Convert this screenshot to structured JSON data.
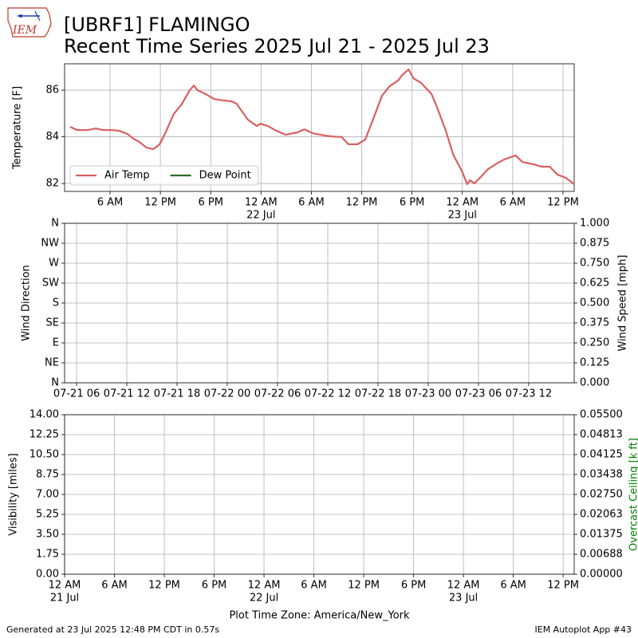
{
  "title": "[UBRF1] FLAMINGO",
  "subtitle": "Recent Time Series 2025 Jul 21 - 2025 Jul 23",
  "logo_text": "IEM",
  "footer_left": "Generated at 23 Jul 2025 12:48 PM CDT in 0.57s",
  "footer_right": "IEM Autoplot App #43",
  "chart_data": [
    {
      "type": "line",
      "ylabel": "Temperature [F]",
      "xlim": [
        "2025-07-21T00:35",
        "2025-07-23T13:20"
      ],
      "ylim": [
        81.66,
        87.13
      ],
      "yticks": [
        82,
        84,
        86
      ],
      "xticks": [
        {
          "value": "2025-07-21T06:00",
          "label": "6 AM"
        },
        {
          "value": "2025-07-21T12:00",
          "label": "12 PM"
        },
        {
          "value": "2025-07-21T18:00",
          "label": "6 PM"
        },
        {
          "value": "2025-07-22T00:00",
          "label": "12 AM",
          "date": "22 Jul"
        },
        {
          "value": "2025-07-22T06:00",
          "label": "6 AM"
        },
        {
          "value": "2025-07-22T12:00",
          "label": "12 PM"
        },
        {
          "value": "2025-07-22T18:00",
          "label": "6 PM"
        },
        {
          "value": "2025-07-23T00:00",
          "label": "12 AM",
          "date": "23 Jul"
        },
        {
          "value": "2025-07-23T06:00",
          "label": "6 AM"
        },
        {
          "value": "2025-07-23T12:00",
          "label": "12 PM"
        }
      ],
      "grid": true,
      "legend": "lower left",
      "series": [
        {
          "name": "Air Temp",
          "color": "#d9605f",
          "x": [
            "2025-07-21T01:15",
            "2025-07-21T02:05",
            "2025-07-21T03:20",
            "2025-07-21T04:20",
            "2025-07-21T05:05",
            "2025-07-21T06:10",
            "2025-07-21T07:05",
            "2025-07-21T08:05",
            "2025-07-21T08:50",
            "2025-07-21T09:30",
            "2025-07-21T10:20",
            "2025-07-21T11:10",
            "2025-07-21T11:55",
            "2025-07-21T12:40",
            "2025-07-21T13:35",
            "2025-07-21T14:35",
            "2025-07-21T15:30",
            "2025-07-21T16:00",
            "2025-07-21T16:25",
            "2025-07-21T17:25",
            "2025-07-21T18:25",
            "2025-07-21T19:30",
            "2025-07-21T20:30",
            "2025-07-21T21:05",
            "2025-07-21T22:25",
            "2025-07-21T23:30",
            "2025-07-21T23:55",
            "2025-07-22T00:50",
            "2025-07-22T01:40",
            "2025-07-22T02:55",
            "2025-07-22T04:20",
            "2025-07-22T05:10",
            "2025-07-22T06:10",
            "2025-07-22T07:40",
            "2025-07-22T08:55",
            "2025-07-22T09:35",
            "2025-07-22T10:25",
            "2025-07-22T11:30",
            "2025-07-22T12:25",
            "2025-07-22T13:25",
            "2025-07-22T14:25",
            "2025-07-22T15:20",
            "2025-07-22T16:20",
            "2025-07-22T16:50",
            "2025-07-22T17:35",
            "2025-07-22T18:10",
            "2025-07-22T19:05",
            "2025-07-22T20:20",
            "2025-07-22T21:00",
            "2025-07-22T22:00",
            "2025-07-22T22:55",
            "2025-07-22T23:55",
            "2025-07-23T00:35",
            "2025-07-23T00:55",
            "2025-07-23T01:25",
            "2025-07-23T02:10",
            "2025-07-23T03:05",
            "2025-07-23T04:05",
            "2025-07-23T05:00",
            "2025-07-23T06:20",
            "2025-07-23T07:10",
            "2025-07-23T08:30",
            "2025-07-23T09:25",
            "2025-07-23T10:25",
            "2025-07-23T11:20",
            "2025-07-23T12:20",
            "2025-07-23T13:20"
          ],
          "values": [
            84.43,
            84.29,
            84.29,
            84.36,
            84.29,
            84.29,
            84.26,
            84.12,
            83.91,
            83.78,
            83.54,
            83.47,
            83.68,
            84.22,
            84.97,
            85.42,
            86.0,
            86.2,
            86.0,
            85.83,
            85.62,
            85.56,
            85.52,
            85.42,
            84.74,
            84.46,
            84.56,
            84.46,
            84.29,
            84.09,
            84.19,
            84.32,
            84.15,
            84.05,
            84.0,
            84.0,
            83.68,
            83.68,
            83.88,
            84.8,
            85.76,
            86.17,
            86.41,
            86.65,
            86.89,
            86.51,
            86.31,
            85.83,
            85.25,
            84.29,
            83.23,
            82.55,
            81.97,
            82.14,
            82.0,
            82.27,
            82.62,
            82.85,
            83.03,
            83.2,
            82.92,
            82.82,
            82.72,
            82.72,
            82.38,
            82.24,
            81.97
          ]
        },
        {
          "name": "Dew Point",
          "color": "#2e6b2e",
          "x": [],
          "values": []
        }
      ]
    },
    {
      "type": "line",
      "ylabel": "Wind Direction",
      "y2label": "Wind Speed [mph]",
      "xlim": [
        "2025-07-21T04:34",
        "2025-07-23T17:26"
      ],
      "ylim": [
        0,
        360
      ],
      "yticks": [
        {
          "value": 0,
          "label": "N"
        },
        {
          "value": 45,
          "label": "NE"
        },
        {
          "value": 90,
          "label": "E"
        },
        {
          "value": 135,
          "label": "SE"
        },
        {
          "value": 180,
          "label": "S"
        },
        {
          "value": 225,
          "label": "SW"
        },
        {
          "value": 270,
          "label": "W"
        },
        {
          "value": 315,
          "label": "NW"
        },
        {
          "value": 360,
          "label": "N"
        }
      ],
      "y2lim": [
        0,
        1
      ],
      "y2ticks": [
        {
          "value": 0,
          "label": "0.000"
        },
        0.125,
        {
          "value": 0.25,
          "label": "0.250"
        },
        0.375,
        {
          "value": 0.5,
          "label": "0.500"
        },
        0.625,
        {
          "value": 0.75,
          "label": "0.750"
        },
        0.875,
        {
          "value": 1,
          "label": "1.000"
        }
      ],
      "xticks": [
        {
          "value": "2025-07-21T06:00",
          "label": "07-21 06"
        },
        {
          "value": "2025-07-21T12:00",
          "label": "07-21 12"
        },
        {
          "value": "2025-07-21T18:00",
          "label": "07-21 18"
        },
        {
          "value": "2025-07-22T00:00",
          "label": "07-22 00"
        },
        {
          "value": "2025-07-22T06:00",
          "label": "07-22 06"
        },
        {
          "value": "2025-07-22T12:00",
          "label": "07-22 12"
        },
        {
          "value": "2025-07-22T18:00",
          "label": "07-22 18"
        },
        {
          "value": "2025-07-23T00:00",
          "label": "07-23 00"
        },
        {
          "value": "2025-07-23T06:00",
          "label": "07-23 06"
        },
        {
          "value": "2025-07-23T12:00",
          "label": "07-23 12"
        }
      ],
      "grid": true,
      "series": []
    },
    {
      "type": "line",
      "ylabel": "Visibility [miles]",
      "y2label": "Overcast Ceiling [k ft]",
      "y2label_color": "#008000",
      "xlabel": "Plot Time Zone: America/New_York",
      "xlim": [
        "2025-07-21T00:00",
        "2025-07-23T13:20"
      ],
      "ylim": [
        0,
        14
      ],
      "yticks": [
        {
          "value": 0,
          "label": "0.00"
        },
        1.75,
        {
          "value": 3.5,
          "label": "3.50"
        },
        5.25,
        {
          "value": 7,
          "label": "7.00"
        },
        8.75,
        {
          "value": 10.5,
          "label": "10.50"
        },
        12.25,
        {
          "value": 14,
          "label": "14.00"
        }
      ],
      "y2lim": [
        0,
        0.055
      ],
      "y2ticks": [
        {
          "value": 0,
          "label": "0.00000"
        },
        {
          "value": 0.006875,
          "label": "0.00688"
        },
        0.01375,
        {
          "value": 0.020625,
          "label": "0.02063"
        },
        {
          "value": 0.0275,
          "label": "0.02750"
        },
        {
          "value": 0.034375,
          "label": "0.03438"
        },
        0.04125,
        {
          "value": 0.048125,
          "label": "0.04813"
        },
        {
          "value": 0.055,
          "label": "0.05500"
        }
      ],
      "xticks": [
        {
          "value": "2025-07-21T00:00",
          "label": "12 AM",
          "date": "21 Jul"
        },
        {
          "value": "2025-07-21T06:00",
          "label": "6 AM"
        },
        {
          "value": "2025-07-21T12:00",
          "label": "12 PM"
        },
        {
          "value": "2025-07-21T18:00",
          "label": "6 PM"
        },
        {
          "value": "2025-07-22T00:00",
          "label": "12 AM",
          "date": "22 Jul"
        },
        {
          "value": "2025-07-22T06:00",
          "label": "6 AM"
        },
        {
          "value": "2025-07-22T12:00",
          "label": "12 PM"
        },
        {
          "value": "2025-07-22T18:00",
          "label": "6 PM"
        },
        {
          "value": "2025-07-23T00:00",
          "label": "12 AM",
          "date": "23 Jul"
        },
        {
          "value": "2025-07-23T06:00",
          "label": "6 AM"
        },
        {
          "value": "2025-07-23T12:00",
          "label": "12 PM"
        }
      ],
      "grid": true,
      "series": []
    }
  ]
}
